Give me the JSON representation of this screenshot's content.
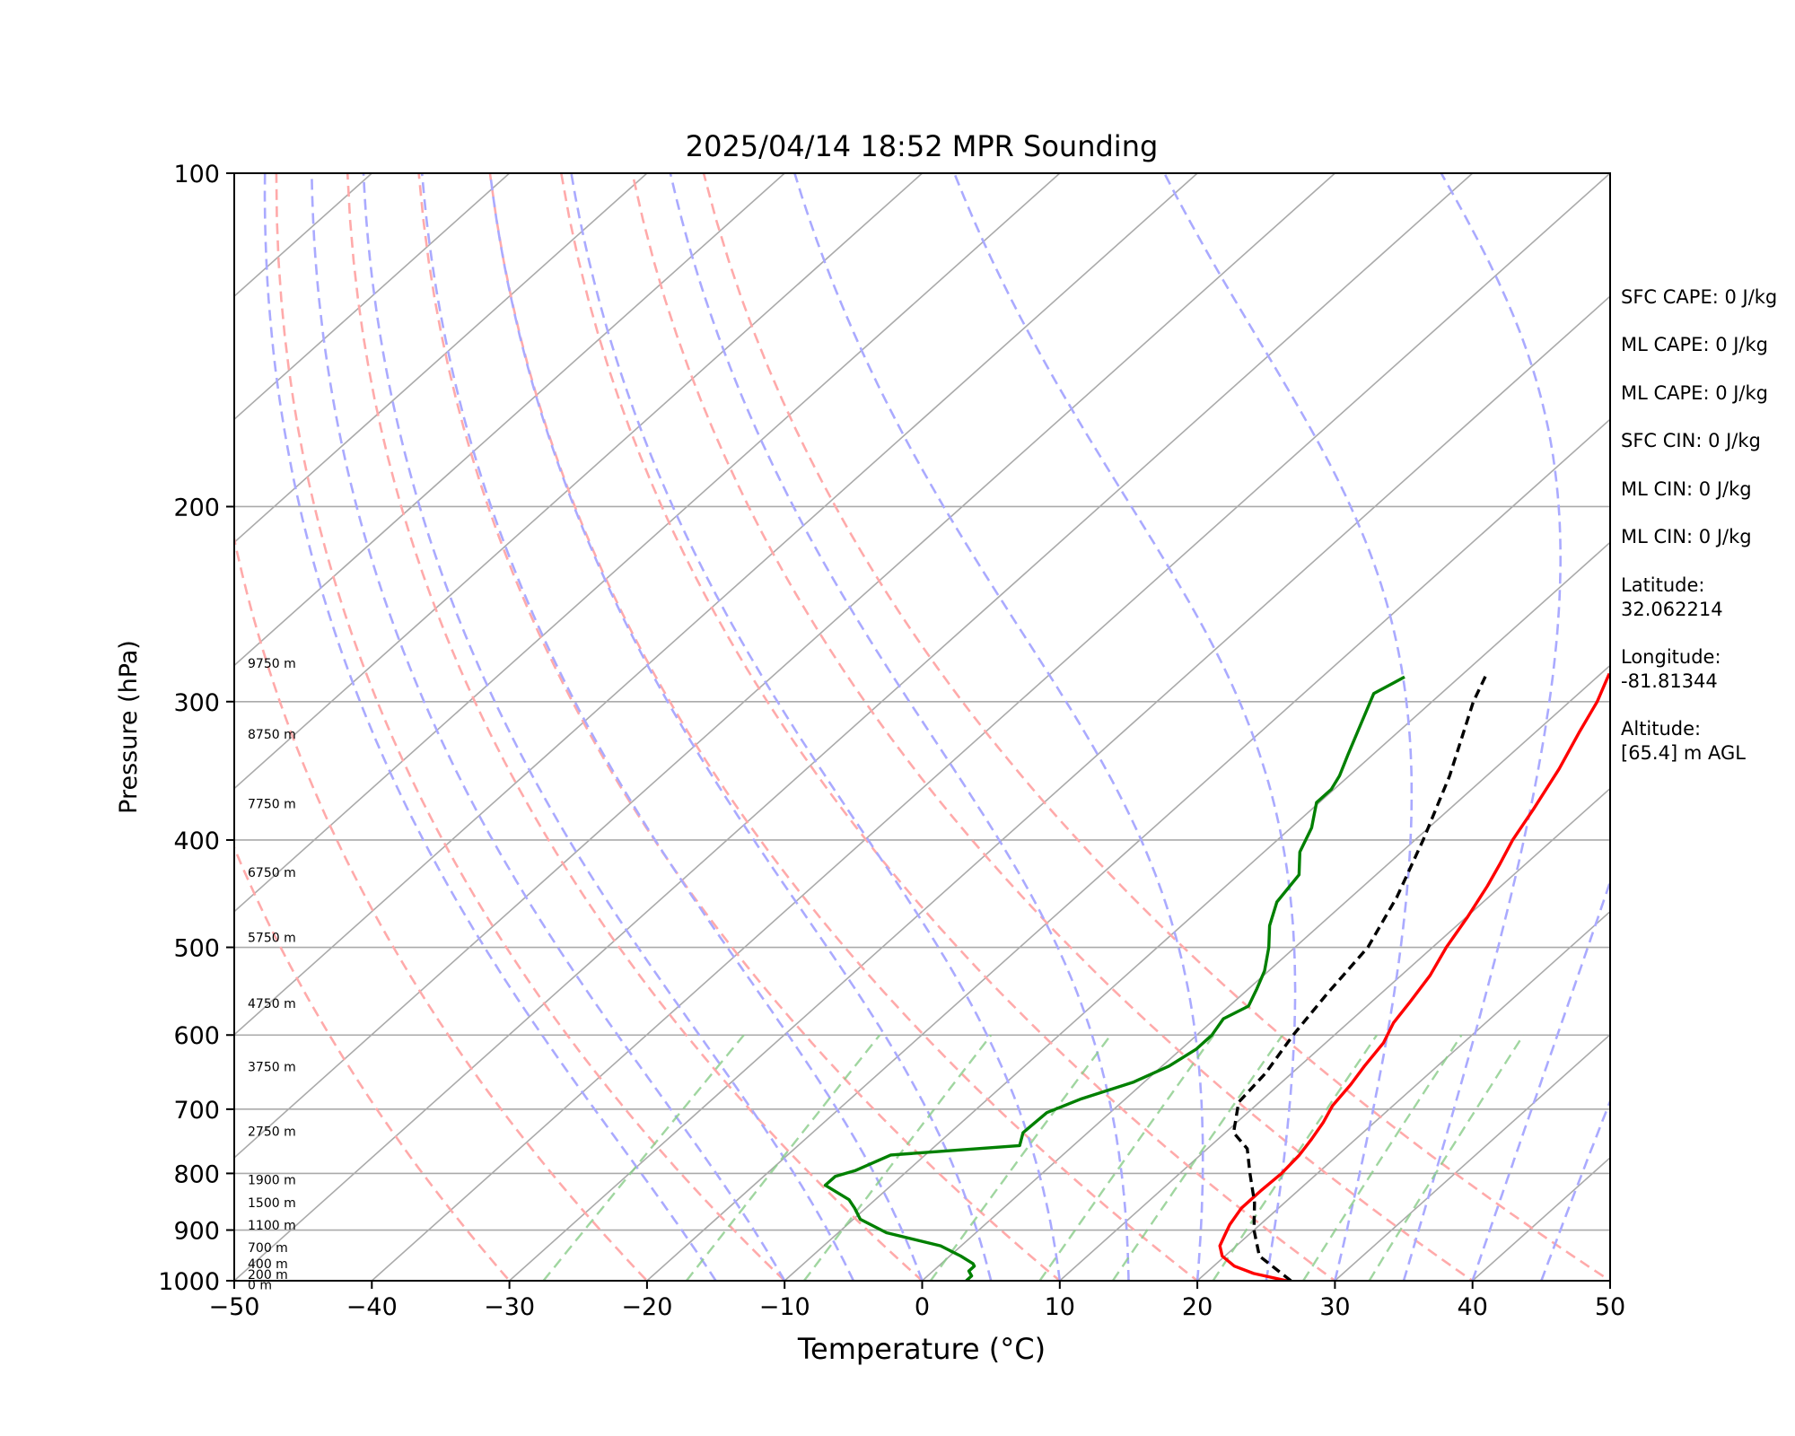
{
  "chart_data": {
    "type": "line",
    "title": "2025/04/14 18:52 MPR Sounding",
    "xlabel": "Temperature (°C)",
    "ylabel": "Pressure (hPa)",
    "xlim": [
      -50,
      50
    ],
    "ylim": [
      1000,
      100
    ],
    "y_scale": "log",
    "x_ticks": [
      -50,
      -40,
      -30,
      -20,
      -10,
      0,
      10,
      20,
      30,
      40,
      50
    ],
    "x_tick_labels": [
      "−50",
      "−40",
      "−30",
      "−20",
      "−10",
      "0",
      "10",
      "20",
      "30",
      "40",
      "50"
    ],
    "y_ticks": [
      100,
      200,
      300,
      400,
      500,
      600,
      700,
      800,
      900,
      1000
    ],
    "y_tick_labels": [
      "100",
      "200",
      "300",
      "400",
      "500",
      "600",
      "700",
      "800",
      "900",
      "1000"
    ],
    "grid": true,
    "isotherms": {
      "color": "#aaaaaa",
      "from": -180,
      "to": 60,
      "step": 10
    },
    "dry_adiabats": {
      "color": "#ffaaaa",
      "surface_temps": [
        -30,
        -20,
        -10,
        0,
        10,
        20,
        30,
        40,
        50
      ]
    },
    "moist_adiabats": {
      "color": "#aaaaff",
      "surface_temps": [
        -15,
        -10,
        -5,
        0,
        5,
        10,
        15,
        20,
        25,
        30,
        35,
        40,
        45,
        50
      ]
    },
    "mixing_ratio_lines": {
      "color": "#88cc88",
      "top_pressure": 600,
      "mixing_ratios": [
        0.4,
        1,
        2,
        4,
        7,
        10,
        16,
        24,
        32
      ]
    },
    "series": [
      {
        "role": "temperature",
        "color": "#ff0000",
        "points": [
          [
            1000,
            26.5
          ],
          [
            985,
            23.5
          ],
          [
            970,
            21.5
          ],
          [
            950,
            19.8
          ],
          [
            930,
            18.8
          ],
          [
            910,
            18.3
          ],
          [
            890,
            17.8
          ],
          [
            860,
            17.3
          ],
          [
            830,
            17.3
          ],
          [
            800,
            17.4
          ],
          [
            770,
            17.2
          ],
          [
            745,
            16.8
          ],
          [
            720,
            16.3
          ],
          [
            695,
            15.6
          ],
          [
            665,
            15.2
          ],
          [
            640,
            14.7
          ],
          [
            610,
            14.2
          ],
          [
            585,
            13.3
          ],
          [
            560,
            12.8
          ],
          [
            530,
            12.1
          ],
          [
            500,
            11.0
          ],
          [
            470,
            10.1
          ],
          [
            440,
            9.0
          ],
          [
            420,
            8.1
          ],
          [
            400,
            7.1
          ],
          [
            375,
            6.1
          ],
          [
            345,
            4.7
          ],
          [
            320,
            3.2
          ],
          [
            300,
            2.0
          ],
          [
            283,
            0.6
          ]
        ]
      },
      {
        "role": "dewpoint",
        "color": "#008000",
        "points": [
          [
            1000,
            3.2
          ],
          [
            990,
            3.2
          ],
          [
            980,
            2.6
          ],
          [
            970,
            2.6
          ],
          [
            965,
            2.3
          ],
          [
            950,
            0.8
          ],
          [
            930,
            -1.5
          ],
          [
            905,
            -6.5
          ],
          [
            880,
            -9.5
          ],
          [
            860,
            -10.8
          ],
          [
            845,
            -11.9
          ],
          [
            820,
            -14.8
          ],
          [
            805,
            -14.8
          ],
          [
            795,
            -13.8
          ],
          [
            770,
            -12.5
          ],
          [
            755,
            -3.9
          ],
          [
            735,
            -4.7
          ],
          [
            705,
            -4.6
          ],
          [
            685,
            -3.2
          ],
          [
            662,
            -0.8
          ],
          [
            640,
            0.5
          ],
          [
            618,
            1.1
          ],
          [
            600,
            1.1
          ],
          [
            580,
            0.6
          ],
          [
            565,
            1.4
          ],
          [
            545,
            0.6
          ],
          [
            525,
            -0.3
          ],
          [
            500,
            -1.9
          ],
          [
            478,
            -3.6
          ],
          [
            455,
            -5.0
          ],
          [
            430,
            -5.6
          ],
          [
            410,
            -7.4
          ],
          [
            390,
            -8.5
          ],
          [
            370,
            -10.2
          ],
          [
            360,
            -10.2
          ],
          [
            350,
            -10.7
          ],
          [
            335,
            -11.8
          ],
          [
            315,
            -13.3
          ],
          [
            295,
            -14.9
          ],
          [
            285,
            -14.0
          ]
        ]
      },
      {
        "role": "parcel",
        "color": "#000000",
        "dashed": true,
        "points": [
          [
            1000,
            26.8
          ],
          [
            950,
            22.5
          ],
          [
            900,
            20.0
          ],
          [
            850,
            17.8
          ],
          [
            800,
            15.1
          ],
          [
            760,
            12.9
          ],
          [
            735,
            10.6
          ],
          [
            690,
            8.5
          ],
          [
            650,
            8.1
          ],
          [
            600,
            7.0
          ],
          [
            550,
            6.1
          ],
          [
            500,
            5.3
          ],
          [
            450,
            3.3
          ],
          [
            400,
            0.6
          ],
          [
            350,
            -2.7
          ],
          [
            300,
            -7.0
          ],
          [
            283,
            -8.3
          ]
        ]
      }
    ],
    "height_labels": [
      {
        "text": "0 m",
        "pressure": 1008
      },
      {
        "text": "200 m",
        "pressure": 987
      },
      {
        "text": "400 m",
        "pressure": 965
      },
      {
        "text": "700 m",
        "pressure": 933
      },
      {
        "text": "1100 m",
        "pressure": 891
      },
      {
        "text": "1500 m",
        "pressure": 850
      },
      {
        "text": "1900 m",
        "pressure": 811
      },
      {
        "text": "2750 m",
        "pressure": 733
      },
      {
        "text": "3750 m",
        "pressure": 641
      },
      {
        "text": "4750 m",
        "pressure": 562
      },
      {
        "text": "5750 m",
        "pressure": 490
      },
      {
        "text": "6750 m",
        "pressure": 428
      },
      {
        "text": "7750 m",
        "pressure": 371
      },
      {
        "text": "8750 m",
        "pressure": 321
      },
      {
        "text": "9750 m",
        "pressure": 277
      }
    ],
    "annotations": [
      {
        "lines": [
          "SFC CAPE: 0 J/kg"
        ]
      },
      {
        "lines": [
          "ML CAPE: 0 J/kg"
        ]
      },
      {
        "lines": [
          "ML CAPE: 0 J/kg"
        ]
      },
      {
        "lines": [
          "SFC CIN: 0 J/kg"
        ]
      },
      {
        "lines": [
          "ML CIN: 0 J/kg"
        ]
      },
      {
        "lines": [
          "ML CIN: 0 J/kg"
        ]
      },
      {
        "lines": [
          "Latitude:",
          "32.062214"
        ]
      },
      {
        "lines": [
          "Longitude:",
          "-81.81344"
        ]
      },
      {
        "lines": [
          "Altitude:",
          "[65.4] m AGL"
        ]
      }
    ]
  }
}
